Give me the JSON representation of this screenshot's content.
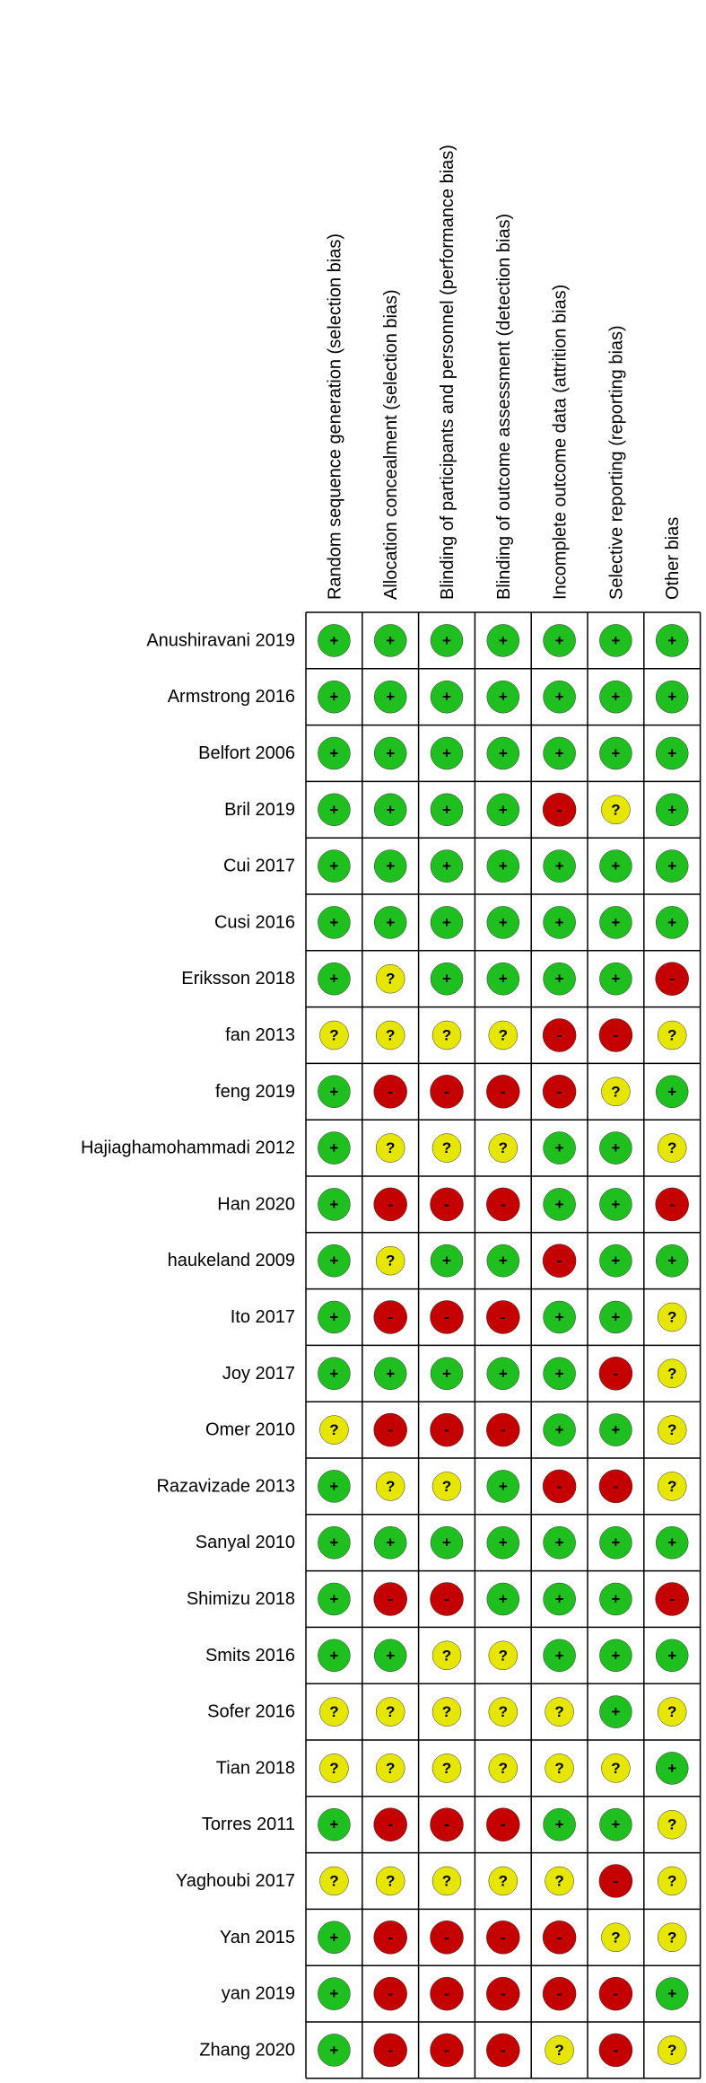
{
  "chart_data": {
    "type": "risk-of-bias",
    "domains": [
      "Random sequence generation (selection bias)",
      "Allocation concealment (selection bias)",
      "Blinding of participants and personnel (performance bias)",
      "Blinding of outcome assessment (detection bias)",
      "Incomplete outcome data (attrition bias)",
      "Selective reporting (reporting bias)",
      "Other bias"
    ],
    "colors": {
      "+": "#1fbf1f",
      "-": "#c40000",
      "?": "#e6e600"
    },
    "studies": [
      {
        "name": "Anushiravani 2019",
        "judgements": [
          "+",
          "+",
          "+",
          "+",
          "+",
          "+",
          "+"
        ]
      },
      {
        "name": "Armstrong 2016",
        "judgements": [
          "+",
          "+",
          "+",
          "+",
          "+",
          "+",
          "+"
        ]
      },
      {
        "name": "Belfort 2006",
        "judgements": [
          "+",
          "+",
          "+",
          "+",
          "+",
          "+",
          "+"
        ]
      },
      {
        "name": "Bril 2019",
        "judgements": [
          "+",
          "+",
          "+",
          "+",
          "-",
          "?",
          "+"
        ]
      },
      {
        "name": "Cui 2017",
        "judgements": [
          "+",
          "+",
          "+",
          "+",
          "+",
          "+",
          "+"
        ]
      },
      {
        "name": "Cusi 2016",
        "judgements": [
          "+",
          "+",
          "+",
          "+",
          "+",
          "+",
          "+"
        ]
      },
      {
        "name": "Eriksson 2018",
        "judgements": [
          "+",
          "?",
          "+",
          "+",
          "+",
          "+",
          "-"
        ]
      },
      {
        "name": "fan 2013",
        "judgements": [
          "?",
          "?",
          "?",
          "?",
          "-",
          "-",
          "?"
        ]
      },
      {
        "name": "feng 2019",
        "judgements": [
          "+",
          "-",
          "-",
          "-",
          "-",
          "?",
          "+"
        ]
      },
      {
        "name": "Hajiaghamohammadi 2012",
        "judgements": [
          "+",
          "?",
          "?",
          "?",
          "+",
          "+",
          "?"
        ]
      },
      {
        "name": "Han 2020",
        "judgements": [
          "+",
          "-",
          "-",
          "-",
          "+",
          "+",
          "-"
        ]
      },
      {
        "name": "haukeland 2009",
        "judgements": [
          "+",
          "?",
          "+",
          "+",
          "-",
          "+",
          "+"
        ]
      },
      {
        "name": "Ito 2017",
        "judgements": [
          "+",
          "-",
          "-",
          "-",
          "+",
          "+",
          "?"
        ]
      },
      {
        "name": "Joy 2017",
        "judgements": [
          "+",
          "+",
          "+",
          "+",
          "+",
          "-",
          "?"
        ]
      },
      {
        "name": "Omer 2010",
        "judgements": [
          "?",
          "-",
          "-",
          "-",
          "+",
          "+",
          "?"
        ]
      },
      {
        "name": "Razavizade 2013",
        "judgements": [
          "+",
          "?",
          "?",
          "+",
          "-",
          "-",
          "?"
        ]
      },
      {
        "name": "Sanyal 2010",
        "judgements": [
          "+",
          "+",
          "+",
          "+",
          "+",
          "+",
          "+"
        ]
      },
      {
        "name": "Shimizu 2018",
        "judgements": [
          "+",
          "-",
          "-",
          "+",
          "+",
          "+",
          "-"
        ]
      },
      {
        "name": "Smits 2016",
        "judgements": [
          "+",
          "+",
          "?",
          "?",
          "+",
          "+",
          "+"
        ]
      },
      {
        "name": "Sofer 2016",
        "judgements": [
          "?",
          "?",
          "?",
          "?",
          "?",
          "+",
          "?"
        ]
      },
      {
        "name": "Tian 2018",
        "judgements": [
          "?",
          "?",
          "?",
          "?",
          "?",
          "?",
          "+"
        ]
      },
      {
        "name": "Torres 2011",
        "judgements": [
          "+",
          "-",
          "-",
          "-",
          "+",
          "+",
          "?"
        ]
      },
      {
        "name": "Yaghoubi 2017",
        "judgements": [
          "?",
          "?",
          "?",
          "?",
          "?",
          "-",
          "?"
        ]
      },
      {
        "name": "Yan 2015",
        "judgements": [
          "+",
          "-",
          "-",
          "-",
          "-",
          "?",
          "?"
        ]
      },
      {
        "name": "yan 2019",
        "judgements": [
          "+",
          "-",
          "-",
          "-",
          "-",
          "-",
          "+"
        ]
      },
      {
        "name": "Zhang 2020",
        "judgements": [
          "+",
          "-",
          "-",
          "-",
          "?",
          "-",
          "?"
        ]
      }
    ]
  }
}
